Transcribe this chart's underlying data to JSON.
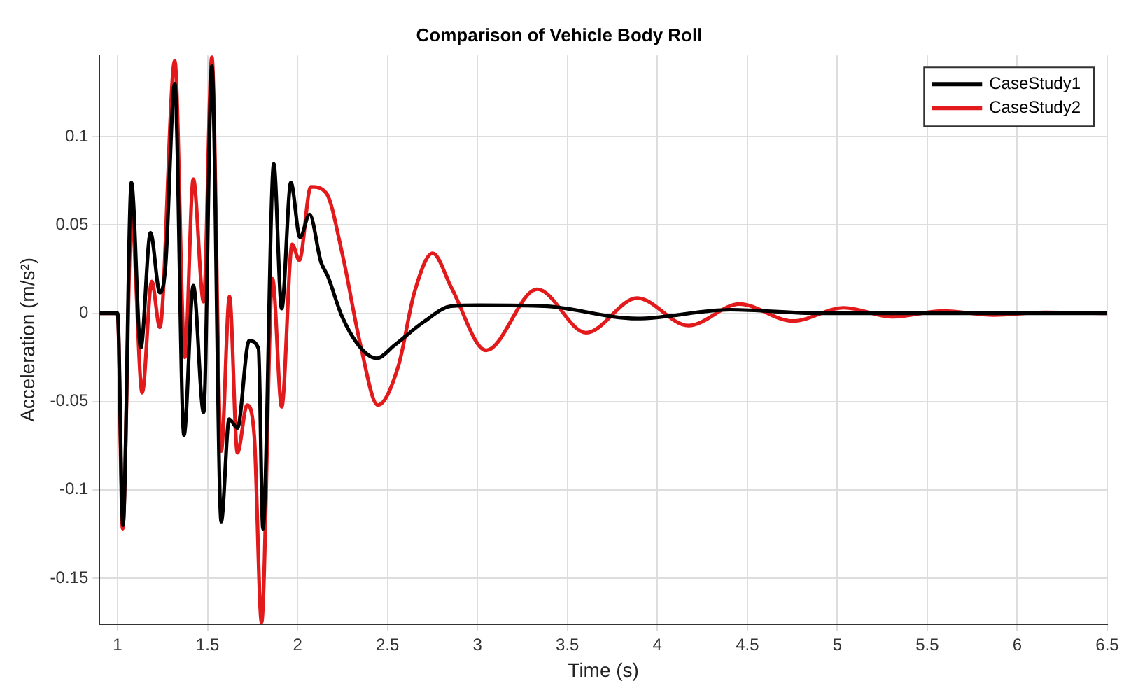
{
  "chart_data": {
    "type": "line",
    "title": "Comparison of Vehicle Body Roll",
    "xlabel": "Time (s)",
    "ylabel": "Acceleration (m/s²)",
    "xlim": [
      0.9,
      6.5
    ],
    "xticks": [
      1,
      1.5,
      2,
      2.5,
      3,
      3.5,
      4,
      4.5,
      5,
      5.5,
      6,
      6.5
    ],
    "ylim": [
      -0.176,
      0.146
    ],
    "yticks": [
      -0.15,
      -0.1,
      -0.05,
      0,
      0.05,
      0.1
    ],
    "grid": true,
    "legend": "top right",
    "marker": "none",
    "line_style": "solid",
    "series": [
      {
        "name": "CaseStudy1",
        "color": "#000000",
        "x": [
          0.9,
          1.0,
          1.03,
          1.077,
          1.129,
          1.183,
          1.235,
          1.266,
          1.318,
          1.369,
          1.421,
          1.478,
          1.524,
          1.576,
          1.62,
          1.666,
          1.731,
          1.783,
          1.808,
          1.868,
          1.912,
          1.963,
          2.014,
          2.067,
          2.13,
          2.168,
          2.248,
          2.35,
          2.44,
          2.54,
          2.7,
          2.855,
          3.01,
          3.37,
          3.888,
          4.405,
          4.9,
          5.5,
          6.5
        ],
        "values": [
          0,
          0,
          -0.12,
          0.074,
          -0.0195,
          0.0456,
          0.0117,
          0.026,
          0.13,
          -0.069,
          0.0156,
          -0.056,
          0.14,
          -0.118,
          -0.06,
          -0.065,
          -0.0156,
          -0.02,
          -0.122,
          0.0846,
          0.0026,
          0.074,
          0.043,
          0.056,
          0.029,
          0.021,
          -0.002,
          -0.0195,
          -0.0255,
          -0.018,
          -0.005,
          0.004,
          0.0045,
          0.004,
          -0.003,
          0.002,
          0,
          0,
          0
        ]
      },
      {
        "name": "CaseStudy2",
        "color": "#e31a1c",
        "x": [
          0.9,
          1.0,
          1.028,
          1.078,
          1.137,
          1.19,
          1.235,
          1.318,
          1.374,
          1.421,
          1.478,
          1.524,
          1.576,
          1.622,
          1.666,
          1.72,
          1.76,
          1.8,
          1.861,
          1.912,
          1.97,
          2.01,
          2.074,
          2.16,
          2.248,
          2.35,
          2.446,
          2.56,
          2.65,
          2.751,
          2.855,
          3.048,
          3.332,
          3.604,
          3.888,
          4.172,
          4.456,
          4.753,
          5.037,
          5.308,
          5.59,
          5.87,
          6.15,
          6.5
        ],
        "values": [
          0,
          0,
          -0.122,
          0.055,
          -0.045,
          0.018,
          -0.008,
          0.143,
          -0.025,
          0.076,
          0.0065,
          0.145,
          -0.078,
          0.0094,
          -0.079,
          -0.052,
          -0.07,
          -0.175,
          0.0195,
          -0.053,
          0.039,
          0.03,
          0.0716,
          0.068,
          0.034,
          -0.018,
          -0.052,
          -0.03,
          0.012,
          0.034,
          0.0145,
          -0.021,
          0.0136,
          -0.011,
          0.0086,
          -0.007,
          0.0052,
          -0.0044,
          0.0031,
          -0.002,
          0.0013,
          -0.001,
          0.0005,
          0
        ]
      }
    ]
  }
}
